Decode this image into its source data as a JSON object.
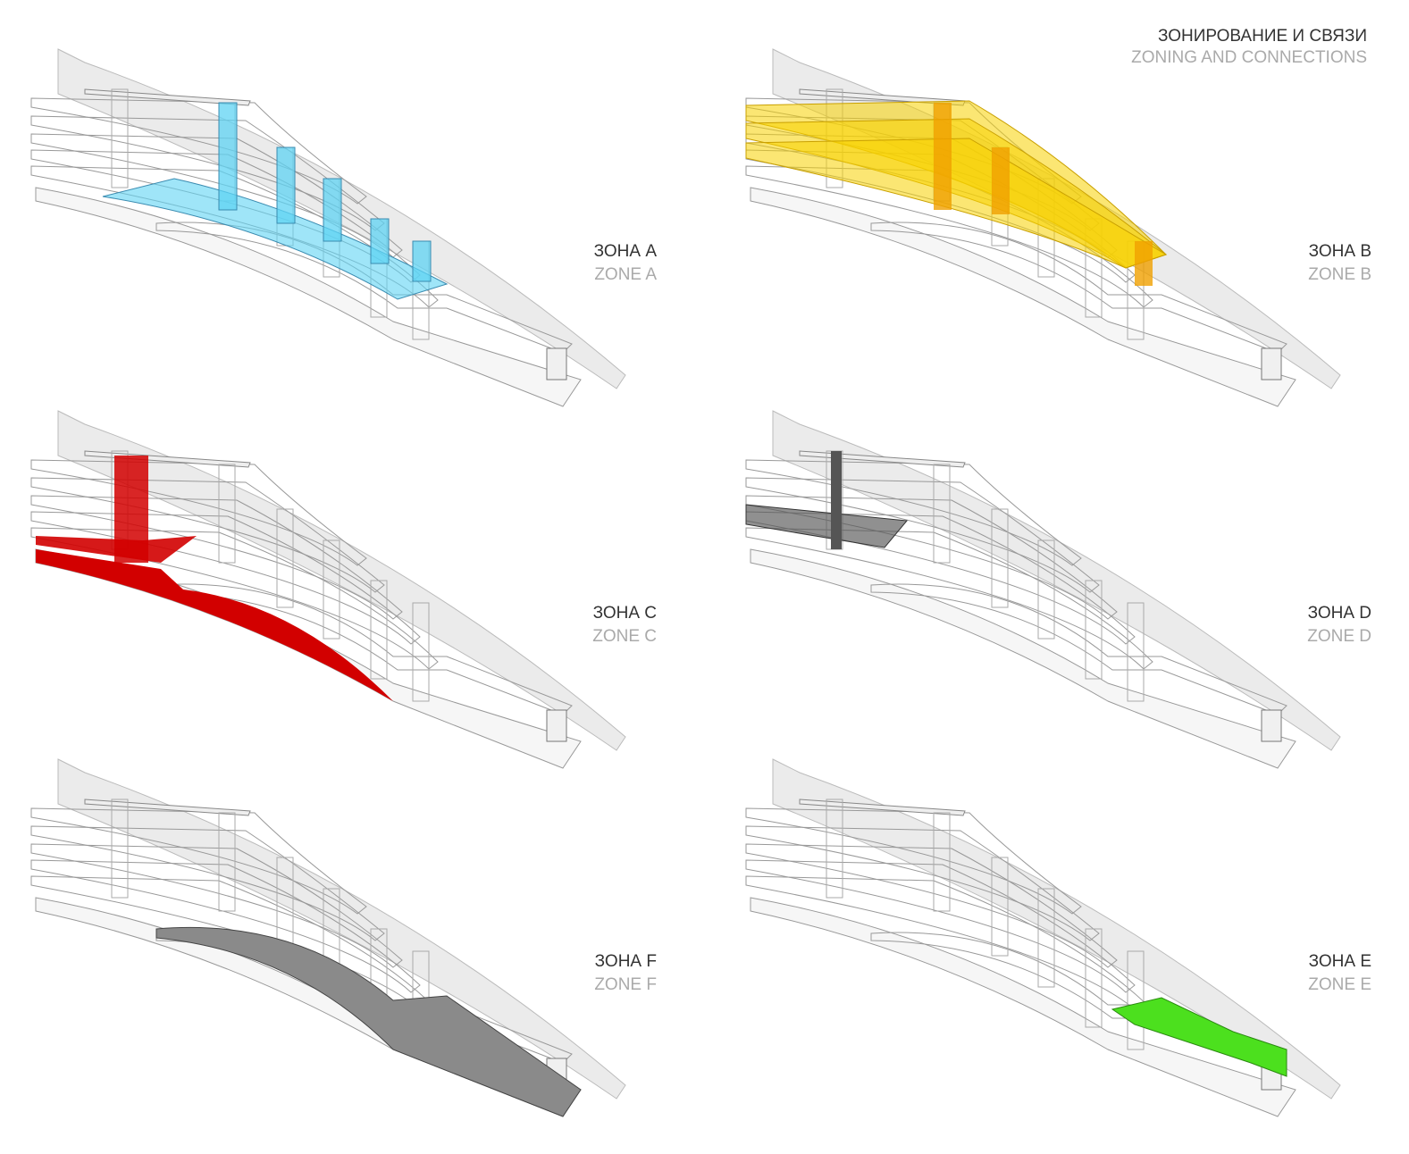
{
  "header": {
    "title": "ЗОНИРОВАНИЕ И СВЯЗИ",
    "subtitle": "ZONING AND CONNECTIONS"
  },
  "panels": [
    {
      "label_ru": "ЗОНА A",
      "label_en": "ZONE A",
      "color": "#5fd3f3"
    },
    {
      "label_ru": "ЗОНА B",
      "label_en": "ZONE B",
      "color": "#f7d200"
    },
    {
      "label_ru": "ЗОНА C",
      "label_en": "ZONE C",
      "color": "#d20000"
    },
    {
      "label_ru": "ЗОНА D",
      "label_en": "ZONE D",
      "color": "#555555"
    },
    {
      "label_ru": "ЗОНА F",
      "label_en": "ZONE F",
      "color": "#8a8a8a"
    },
    {
      "label_ru": "ЗОНА E",
      "label_en": "ZONE E",
      "color": "#4ce01e"
    }
  ]
}
